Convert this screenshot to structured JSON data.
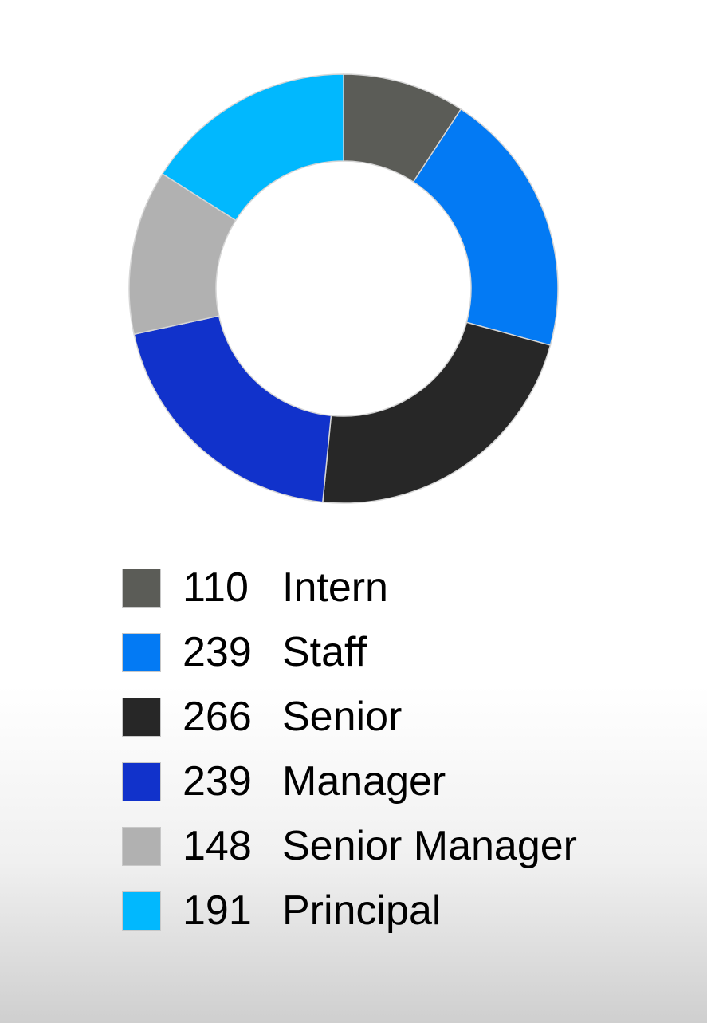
{
  "chart_data": {
    "type": "pie",
    "donut": true,
    "categories": [
      "Intern",
      "Staff",
      "Senior",
      "Manager",
      "Senior Manager",
      "Principal"
    ],
    "values": [
      110,
      239,
      266,
      239,
      148,
      191
    ],
    "colors": [
      "#5b5c57",
      "#037af4",
      "#272727",
      "#1132cb",
      "#b1b1b1",
      "#01b8fe"
    ],
    "start": "top, clockwise",
    "legend": {
      "placement": "bottom",
      "entries": [
        {
          "value": "110",
          "label": "Intern"
        },
        {
          "value": "239",
          "label": "Staff"
        },
        {
          "value": "266",
          "label": "Senior"
        },
        {
          "value": "239",
          "label": "Manager"
        },
        {
          "value": "148",
          "label": "Senior Manager"
        },
        {
          "value": "191",
          "label": "Principal"
        }
      ]
    }
  }
}
